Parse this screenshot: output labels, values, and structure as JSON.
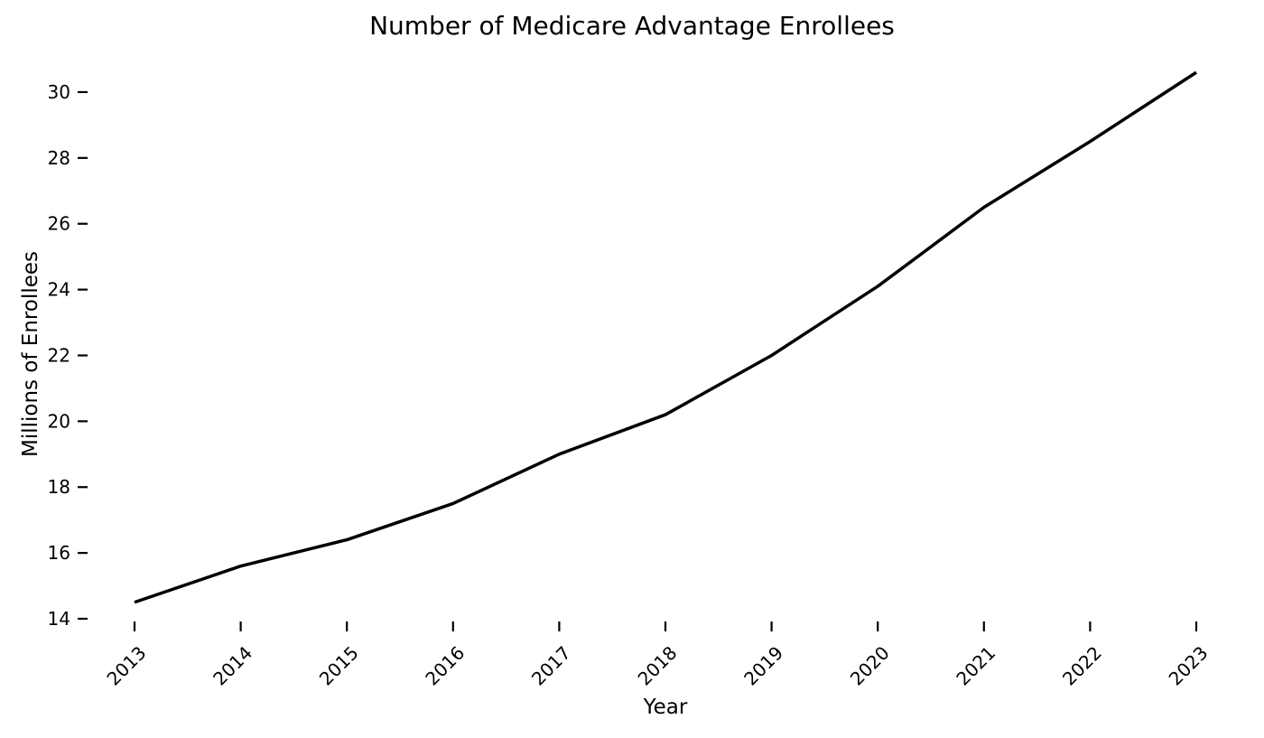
{
  "chart_data": {
    "type": "line",
    "title": "Number of Medicare Advantage Enrollees",
    "xlabel": "Year",
    "ylabel": "Millions of Enrollees",
    "categories": [
      "2013",
      "2014",
      "2015",
      "2016",
      "2017",
      "2018",
      "2019",
      "2020",
      "2021",
      "2022",
      "2023"
    ],
    "values": [
      14.5,
      15.6,
      16.4,
      17.5,
      19.0,
      20.2,
      22.0,
      24.1,
      26.5,
      28.5,
      30.6
    ],
    "yticks": [
      14,
      16,
      18,
      20,
      22,
      24,
      26,
      28,
      30
    ],
    "ylim": [
      14,
      31
    ],
    "xtick_rotation_deg": 45,
    "grid": false,
    "legend": null,
    "line_color": "#000000",
    "line_width": 3.5,
    "text_color": "#000000",
    "background_color": "#ffffff"
  }
}
